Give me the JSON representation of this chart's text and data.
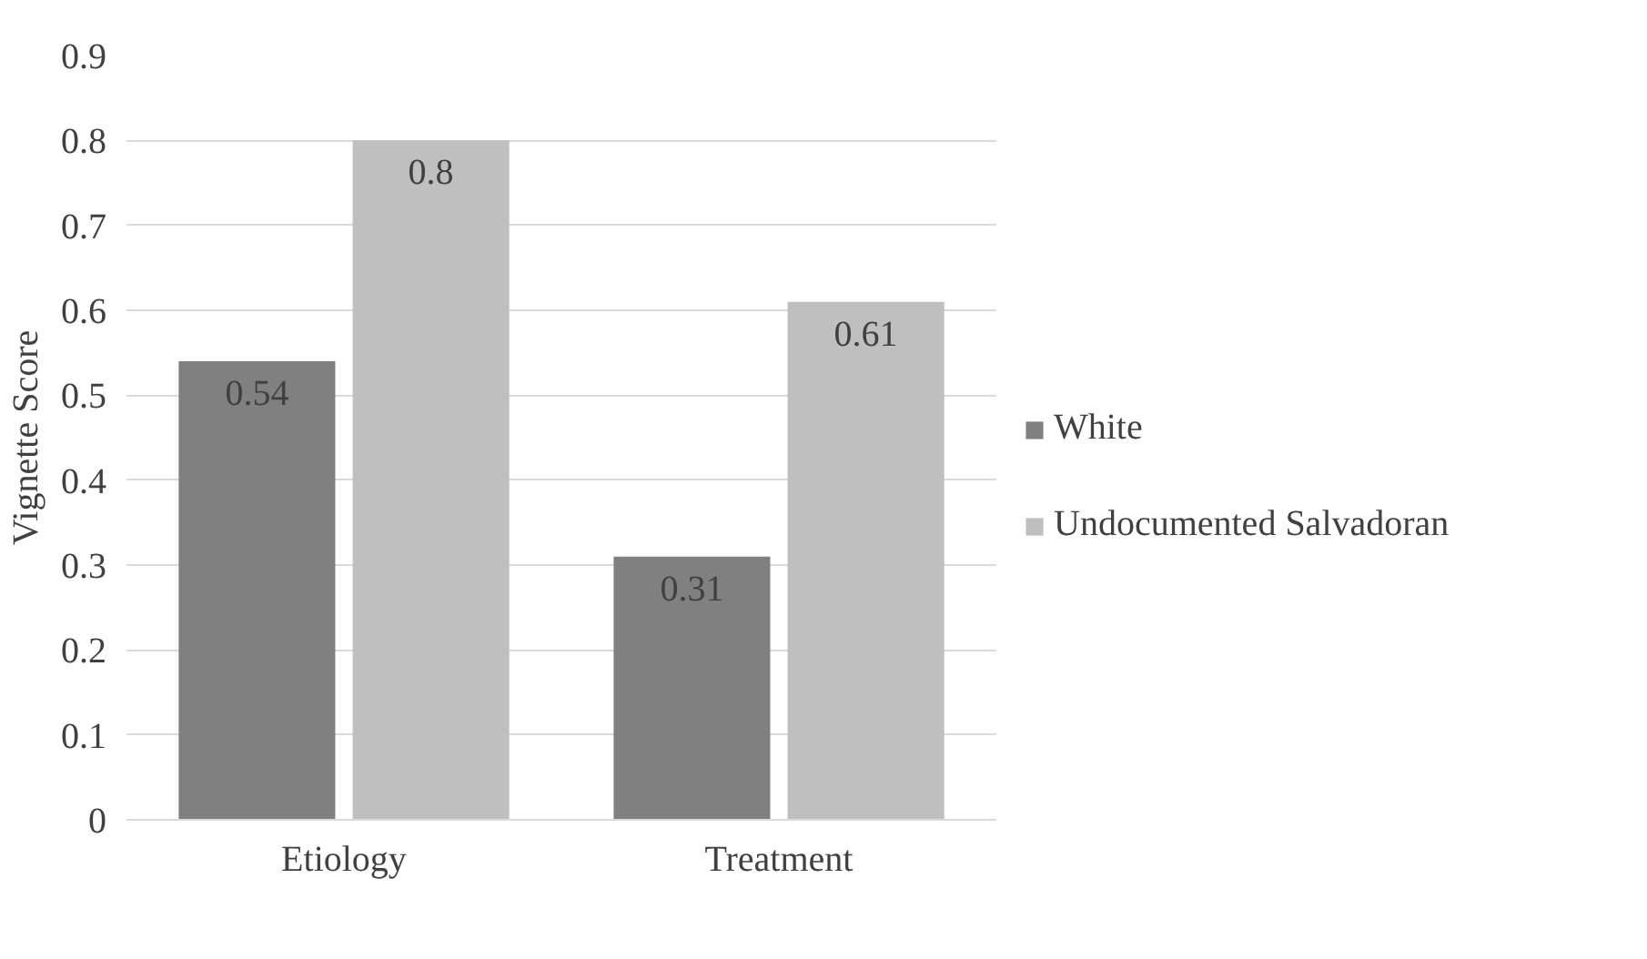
{
  "chart_data": {
    "type": "bar",
    "ylabel": "Vignette Score",
    "categories": [
      "Etiology",
      "Treatment"
    ],
    "series": [
      {
        "name": "White",
        "color": "#808080",
        "values": [
          0.54,
          0.31
        ]
      },
      {
        "name": "Undocumented Salvadoran",
        "color": "#bfbfbf",
        "values": [
          0.8,
          0.61
        ]
      }
    ],
    "ylim": [
      0,
      0.9
    ],
    "yticks": [
      0,
      0.1,
      0.2,
      0.3,
      0.4,
      0.5,
      0.6,
      0.7,
      0.8,
      0.9
    ],
    "grid": "y",
    "legend": "right",
    "data_labels": true
  }
}
